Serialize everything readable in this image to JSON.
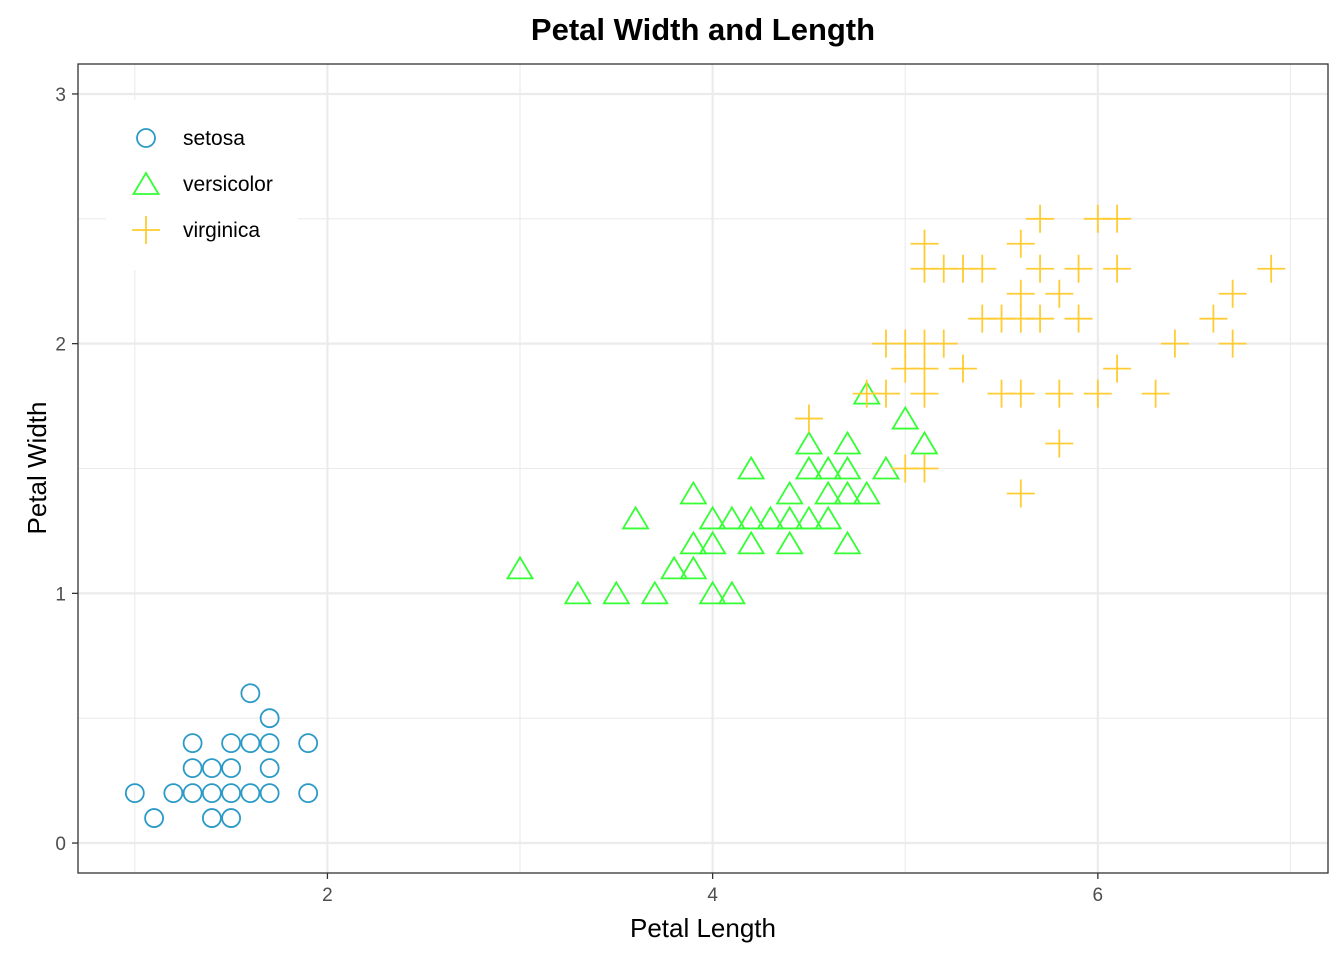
{
  "chart_data": {
    "type": "scatter",
    "title": "Petal Width and Length",
    "xlabel": "Petal Length",
    "ylabel": "Petal Width",
    "xlim": [
      0.705,
      7.195
    ],
    "ylim": [
      -0.12,
      3.12
    ],
    "x_ticks": [
      2,
      4,
      6
    ],
    "y_ticks": [
      0,
      1,
      2,
      3
    ],
    "grid": true,
    "legend_position": "top-left",
    "series": [
      {
        "name": "setosa",
        "marker": "circle",
        "color": "#2b9ac7",
        "points": [
          [
            1.0,
            0.2
          ],
          [
            1.1,
            0.1
          ],
          [
            1.2,
            0.2
          ],
          [
            1.3,
            0.2
          ],
          [
            1.3,
            0.3
          ],
          [
            1.3,
            0.4
          ],
          [
            1.4,
            0.1
          ],
          [
            1.4,
            0.2
          ],
          [
            1.4,
            0.3
          ],
          [
            1.5,
            0.1
          ],
          [
            1.5,
            0.2
          ],
          [
            1.5,
            0.3
          ],
          [
            1.5,
            0.4
          ],
          [
            1.6,
            0.2
          ],
          [
            1.6,
            0.4
          ],
          [
            1.6,
            0.6
          ],
          [
            1.7,
            0.2
          ],
          [
            1.7,
            0.3
          ],
          [
            1.7,
            0.4
          ],
          [
            1.7,
            0.5
          ],
          [
            1.9,
            0.2
          ],
          [
            1.9,
            0.4
          ]
        ]
      },
      {
        "name": "versicolor",
        "marker": "triangle",
        "color": "#33ff33",
        "points": [
          [
            3.0,
            1.1
          ],
          [
            3.3,
            1.0
          ],
          [
            3.5,
            1.0
          ],
          [
            3.6,
            1.3
          ],
          [
            3.7,
            1.0
          ],
          [
            3.8,
            1.1
          ],
          [
            3.9,
            1.1
          ],
          [
            3.9,
            1.2
          ],
          [
            3.9,
            1.4
          ],
          [
            4.0,
            1.0
          ],
          [
            4.0,
            1.2
          ],
          [
            4.0,
            1.3
          ],
          [
            4.1,
            1.0
          ],
          [
            4.1,
            1.3
          ],
          [
            4.2,
            1.2
          ],
          [
            4.2,
            1.3
          ],
          [
            4.2,
            1.5
          ],
          [
            4.3,
            1.3
          ],
          [
            4.4,
            1.2
          ],
          [
            4.4,
            1.3
          ],
          [
            4.4,
            1.4
          ],
          [
            4.5,
            1.3
          ],
          [
            4.5,
            1.5
          ],
          [
            4.5,
            1.6
          ],
          [
            4.6,
            1.3
          ],
          [
            4.6,
            1.4
          ],
          [
            4.6,
            1.5
          ],
          [
            4.7,
            1.2
          ],
          [
            4.7,
            1.4
          ],
          [
            4.7,
            1.5
          ],
          [
            4.7,
            1.6
          ],
          [
            4.8,
            1.4
          ],
          [
            4.8,
            1.8
          ],
          [
            4.9,
            1.5
          ],
          [
            5.0,
            1.7
          ],
          [
            5.1,
            1.6
          ]
        ]
      },
      {
        "name": "virginica",
        "marker": "plus",
        "color": "#ffcc33",
        "points": [
          [
            4.5,
            1.7
          ],
          [
            4.8,
            1.8
          ],
          [
            4.9,
            1.8
          ],
          [
            4.9,
            2.0
          ],
          [
            5.0,
            1.5
          ],
          [
            5.0,
            1.9
          ],
          [
            5.0,
            2.0
          ],
          [
            5.1,
            1.5
          ],
          [
            5.1,
            1.8
          ],
          [
            5.1,
            1.9
          ],
          [
            5.1,
            2.0
          ],
          [
            5.1,
            2.3
          ],
          [
            5.1,
            2.4
          ],
          [
            5.2,
            2.0
          ],
          [
            5.2,
            2.3
          ],
          [
            5.3,
            1.9
          ],
          [
            5.3,
            2.3
          ],
          [
            5.4,
            2.1
          ],
          [
            5.4,
            2.3
          ],
          [
            5.5,
            1.8
          ],
          [
            5.5,
            2.1
          ],
          [
            5.6,
            1.4
          ],
          [
            5.6,
            1.8
          ],
          [
            5.6,
            2.1
          ],
          [
            5.6,
            2.2
          ],
          [
            5.6,
            2.4
          ],
          [
            5.7,
            2.1
          ],
          [
            5.7,
            2.3
          ],
          [
            5.7,
            2.5
          ],
          [
            5.8,
            1.6
          ],
          [
            5.8,
            1.8
          ],
          [
            5.8,
            2.2
          ],
          [
            5.9,
            2.1
          ],
          [
            5.9,
            2.3
          ],
          [
            6.0,
            1.8
          ],
          [
            6.0,
            2.5
          ],
          [
            6.1,
            1.9
          ],
          [
            6.1,
            2.3
          ],
          [
            6.1,
            2.5
          ],
          [
            6.3,
            1.8
          ],
          [
            6.4,
            2.0
          ],
          [
            6.6,
            2.1
          ],
          [
            6.7,
            2.0
          ],
          [
            6.7,
            2.2
          ],
          [
            6.9,
            2.3
          ]
        ]
      }
    ]
  }
}
